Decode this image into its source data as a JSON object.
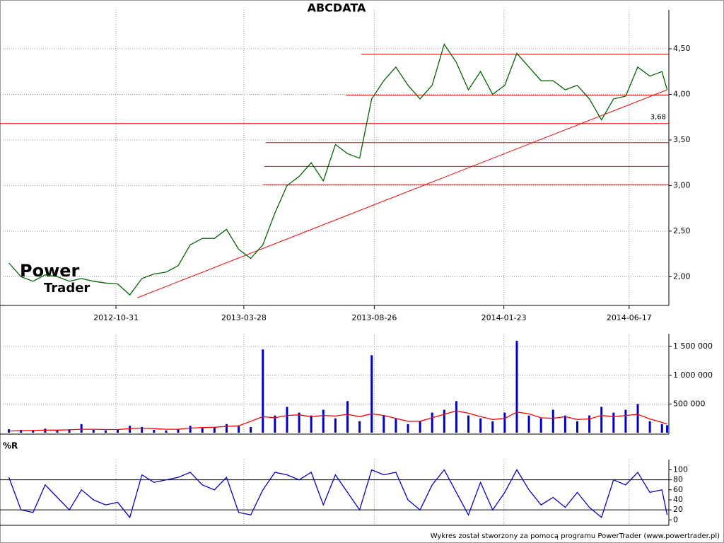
{
  "chart_data": [
    {
      "type": "line",
      "title": "ABCDATA",
      "watermark": [
        "Power",
        "Trader"
      ],
      "x": [
        "2012-06-29",
        "2012-07-13",
        "2012-07-27",
        "2012-08-10",
        "2012-08-24",
        "2012-09-07",
        "2012-09-21",
        "2012-10-05",
        "2012-10-19",
        "2012-11-02",
        "2012-11-16",
        "2012-11-30",
        "2012-12-14",
        "2012-12-28",
        "2013-01-11",
        "2013-01-25",
        "2013-02-08",
        "2013-02-22",
        "2013-03-08",
        "2013-03-22",
        "2013-04-05",
        "2013-04-19",
        "2013-05-03",
        "2013-05-17",
        "2013-05-31",
        "2013-06-14",
        "2013-06-28",
        "2013-07-12",
        "2013-07-26",
        "2013-08-09",
        "2013-08-23",
        "2013-09-06",
        "2013-09-20",
        "2013-10-04",
        "2013-10-18",
        "2013-11-01",
        "2013-11-15",
        "2013-11-29",
        "2013-12-13",
        "2013-12-27",
        "2014-01-10",
        "2014-01-24",
        "2014-02-07",
        "2014-02-21",
        "2014-03-07",
        "2014-03-21",
        "2014-04-04",
        "2014-04-18",
        "2014-05-02",
        "2014-05-16",
        "2014-05-30",
        "2014-06-13",
        "2014-06-27",
        "2014-07-11",
        "2014-07-25",
        "2014-07-31"
      ],
      "series": [
        {
          "color": "#006400",
          "values": [
            2.15,
            2.0,
            1.95,
            2.02,
            2.0,
            1.95,
            1.98,
            1.95,
            1.93,
            1.92,
            1.8,
            1.98,
            2.03,
            2.05,
            2.12,
            2.35,
            2.42,
            2.42,
            2.52,
            2.3,
            2.2,
            2.35,
            2.7,
            3.0,
            3.1,
            3.25,
            3.05,
            3.45,
            3.35,
            3.3,
            3.95,
            4.15,
            4.3,
            4.1,
            3.95,
            4.1,
            4.55,
            4.35,
            4.05,
            4.25,
            4.0,
            4.1,
            4.45,
            4.3,
            4.15,
            4.15,
            4.05,
            4.1,
            3.95,
            3.72,
            3.95,
            3.98,
            4.3,
            4.2,
            4.25,
            4.05
          ]
        }
      ],
      "xlim": [
        "2012-06-22",
        "2014-08-02"
      ],
      "xticks": [
        "2012-10-31",
        "2013-03-28",
        "2013-08-26",
        "2014-01-23",
        "2014-06-17"
      ],
      "ylim": [
        1.7,
        4.88
      ],
      "yticks": [
        {
          "value": 2,
          "label": "2,00"
        },
        {
          "value": 2.5,
          "label": "2,50"
        },
        {
          "value": 3,
          "label": "3,00"
        },
        {
          "value": 3.5,
          "label": "3,50"
        },
        {
          "value": 4,
          "label": "4,00"
        },
        {
          "value": 4.5,
          "label": "4,50"
        }
      ],
      "grid": true,
      "line_color": "#ff0000",
      "levels": [
        {
          "value": 4.44,
          "start": "2013-08-11"
        },
        {
          "value": 3.99,
          "start": "2013-07-24"
        },
        {
          "value": 3.68,
          "label": "3,68"
        },
        {
          "value": 3.47,
          "start": "2013-04-22"
        },
        {
          "value": 3.21,
          "start": "2013-04-21"
        },
        {
          "value": 3.01,
          "start": "2013-04-19"
        }
      ],
      "trendline": {
        "x": [
          "2012-11-25",
          "2014-07-31"
        ],
        "y": [
          1.77,
          4.05
        ]
      }
    },
    {
      "type": "bar",
      "x": [
        "2012-06-29",
        "2012-07-13",
        "2012-07-27",
        "2012-08-10",
        "2012-08-24",
        "2012-09-07",
        "2012-09-21",
        "2012-10-05",
        "2012-10-19",
        "2012-11-02",
        "2012-11-16",
        "2012-11-30",
        "2012-12-14",
        "2012-12-28",
        "2013-01-11",
        "2013-01-25",
        "2013-02-08",
        "2013-02-22",
        "2013-03-08",
        "2013-03-22",
        "2013-04-05",
        "2013-04-19",
        "2013-05-03",
        "2013-05-17",
        "2013-05-31",
        "2013-06-14",
        "2013-06-28",
        "2013-07-12",
        "2013-07-26",
        "2013-08-09",
        "2013-08-23",
        "2013-09-06",
        "2013-09-20",
        "2013-10-04",
        "2013-10-18",
        "2013-11-01",
        "2013-11-15",
        "2013-11-29",
        "2013-12-13",
        "2013-12-27",
        "2014-01-10",
        "2014-01-24",
        "2014-02-07",
        "2014-02-21",
        "2014-03-07",
        "2014-03-21",
        "2014-04-04",
        "2014-04-18",
        "2014-05-02",
        "2014-05-16",
        "2014-05-30",
        "2014-06-13",
        "2014-06-27",
        "2014-07-11",
        "2014-07-25",
        "2014-07-31"
      ],
      "series": [
        {
          "type": "bar",
          "color": "#0000cc",
          "values": [
            60000,
            50000,
            40000,
            70000,
            40000,
            60000,
            150000,
            50000,
            40000,
            60000,
            120000,
            100000,
            50000,
            40000,
            60000,
            120000,
            80000,
            100000,
            150000,
            120000,
            100000,
            1450000,
            300000,
            450000,
            350000,
            300000,
            400000,
            250000,
            550000,
            200000,
            1350000,
            300000,
            250000,
            150000,
            200000,
            350000,
            400000,
            550000,
            300000,
            250000,
            200000,
            350000,
            1600000,
            300000,
            250000,
            400000,
            300000,
            200000,
            300000,
            450000,
            350000,
            400000,
            500000,
            200000,
            150000,
            130000
          ]
        },
        {
          "type": "line",
          "color": "#ff0000",
          "values": [
            30000,
            35000,
            40000,
            45000,
            45000,
            50000,
            60000,
            60000,
            55000,
            55000,
            70000,
            80000,
            70000,
            60000,
            60000,
            80000,
            90000,
            95000,
            110000,
            120000,
            200000,
            280000,
            260000,
            300000,
            310000,
            280000,
            300000,
            290000,
            320000,
            280000,
            330000,
            300000,
            250000,
            200000,
            200000,
            260000,
            320000,
            380000,
            340000,
            280000,
            230000,
            250000,
            360000,
            330000,
            260000,
            250000,
            280000,
            230000,
            240000,
            300000,
            280000,
            300000,
            320000,
            240000,
            180000,
            150000
          ]
        }
      ],
      "xlim": [
        "2012-06-22",
        "2014-08-02"
      ],
      "ylim": [
        0,
        1650000
      ],
      "yticks": [
        {
          "value": 500000,
          "label": "500 000"
        },
        {
          "value": 1000000,
          "label": "1 000 000"
        },
        {
          "value": 1500000,
          "label": "1 500 000"
        }
      ],
      "grid": true
    },
    {
      "type": "line",
      "title": "%R",
      "x": [
        "2012-06-29",
        "2012-07-13",
        "2012-07-27",
        "2012-08-10",
        "2012-08-24",
        "2012-09-07",
        "2012-09-21",
        "2012-10-05",
        "2012-10-19",
        "2012-11-02",
        "2012-11-16",
        "2012-11-30",
        "2012-12-14",
        "2012-12-28",
        "2013-01-11",
        "2013-01-25",
        "2013-02-08",
        "2013-02-22",
        "2013-03-08",
        "2013-03-22",
        "2013-04-05",
        "2013-04-19",
        "2013-05-03",
        "2013-05-17",
        "2013-05-31",
        "2013-06-14",
        "2013-06-28",
        "2013-07-12",
        "2013-07-26",
        "2013-08-09",
        "2013-08-23",
        "2013-09-06",
        "2013-09-20",
        "2013-10-04",
        "2013-10-18",
        "2013-11-01",
        "2013-11-15",
        "2013-11-29",
        "2013-12-13",
        "2013-12-27",
        "2014-01-10",
        "2014-01-24",
        "2014-02-07",
        "2014-02-21",
        "2014-03-07",
        "2014-03-21",
        "2014-04-04",
        "2014-04-18",
        "2014-05-02",
        "2014-05-16",
        "2014-05-30",
        "2014-06-13",
        "2014-06-27",
        "2014-07-11",
        "2014-07-25",
        "2014-07-31"
      ],
      "series": [
        {
          "color": "#0000cc",
          "values": [
            85,
            20,
            15,
            70,
            45,
            20,
            60,
            40,
            30,
            35,
            5,
            90,
            75,
            80,
            85,
            95,
            70,
            60,
            85,
            15,
            10,
            60,
            95,
            90,
            80,
            95,
            30,
            90,
            55,
            20,
            100,
            90,
            95,
            40,
            20,
            70,
            100,
            55,
            10,
            75,
            20,
            55,
            100,
            60,
            30,
            45,
            25,
            55,
            25,
            5,
            80,
            70,
            95,
            55,
            60,
            10
          ]
        }
      ],
      "xlim": [
        "2012-06-22",
        "2014-08-02"
      ],
      "ylim": [
        -8,
        112
      ],
      "yticks": [
        0,
        20,
        40,
        60,
        80,
        100
      ],
      "reference_lines": [
        20,
        80
      ]
    }
  ],
  "footer": "Wykres został stworzony za pomocą programu PowerTrader (www.powertrader.pl)"
}
